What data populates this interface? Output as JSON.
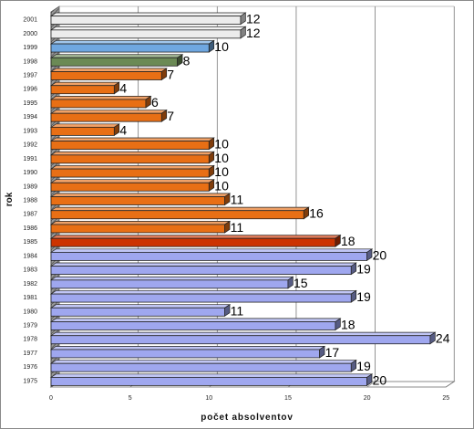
{
  "chart_data": {
    "type": "bar",
    "orientation": "horizontal",
    "style": "3d",
    "xlabel": "počet absolventov",
    "ylabel": "rok",
    "xlim": [
      0,
      25
    ],
    "xticks": [
      0,
      5,
      10,
      15,
      20,
      25
    ],
    "grid": true,
    "categories": [
      "1975",
      "1976",
      "1977",
      "1978",
      "1979",
      "1980",
      "1981",
      "1982",
      "1983",
      "1984",
      "1985",
      "1986",
      "1987",
      "1988",
      "1989",
      "1990",
      "1991",
      "1992",
      "1993",
      "1994",
      "1995",
      "1996",
      "1997",
      "1998",
      "1999",
      "2000",
      "2001"
    ],
    "values": [
      20,
      19,
      17,
      24,
      18,
      11,
      19,
      15,
      19,
      20,
      18,
      11,
      16,
      11,
      10,
      10,
      10,
      10,
      4,
      7,
      6,
      4,
      7,
      8,
      10,
      12,
      12
    ],
    "value_labels": [
      "20",
      "19",
      "17",
      "24",
      "18",
      "11",
      "19",
      "15",
      "19",
      "20",
      "18",
      "11",
      "16",
      "11",
      "10",
      "10",
      "10",
      "10",
      "4",
      "7",
      "6",
      "4",
      "7",
      "8",
      "10",
      "12",
      "12"
    ],
    "bar_colors": [
      "#9fa7ef",
      "#9fa7ef",
      "#9fa7ef",
      "#9fa7ef",
      "#9fa7ef",
      "#9fa7ef",
      "#9fa7ef",
      "#9fa7ef",
      "#9fa7ef",
      "#9fa7ef",
      "#cc3300",
      "#e86f15",
      "#e86f15",
      "#e86f15",
      "#e86f15",
      "#e86f15",
      "#e86f15",
      "#e86f15",
      "#e86f15",
      "#e86f15",
      "#e86f15",
      "#e86f15",
      "#e86f15",
      "#6b8a55",
      "#6fa7e0",
      "#ececec",
      "#ececec"
    ]
  }
}
